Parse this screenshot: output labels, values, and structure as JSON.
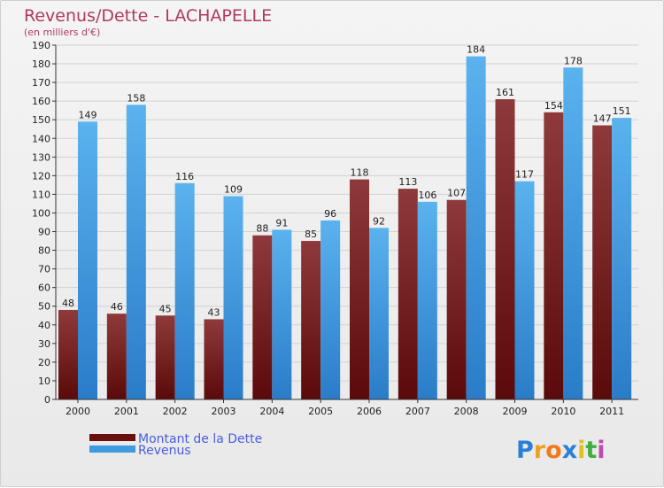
{
  "chart_data": {
    "type": "bar",
    "title": "Revenus/Dette - LACHAPELLE",
    "subtitle": "(en milliers d'€)",
    "categories": [
      "2000",
      "2001",
      "2002",
      "2003",
      "2004",
      "2005",
      "2006",
      "2007",
      "2008",
      "2009",
      "2010",
      "2011"
    ],
    "series": [
      {
        "name": "Montant de la Dette",
        "color": "#7a1a1a",
        "values": [
          48,
          46,
          45,
          43,
          88,
          85,
          118,
          113,
          107,
          161,
          154,
          147
        ]
      },
      {
        "name": "Revenus",
        "color": "#3f9ae0",
        "values": [
          149,
          158,
          116,
          109,
          91,
          96,
          92,
          106,
          184,
          117,
          178,
          151
        ]
      }
    ],
    "ylim": [
      0,
      190
    ],
    "ytick_step": 10,
    "grid": true,
    "legend_position": "bottom-left"
  },
  "logo": {
    "letters": [
      "P",
      "r",
      "o",
      "x",
      "i",
      "t",
      "i"
    ],
    "colors": [
      "#2b7fd6",
      "#f0a020",
      "#f07a1a",
      "#2b7fd6",
      "#e0c020",
      "#3fae3f",
      "#c04ab0"
    ]
  }
}
